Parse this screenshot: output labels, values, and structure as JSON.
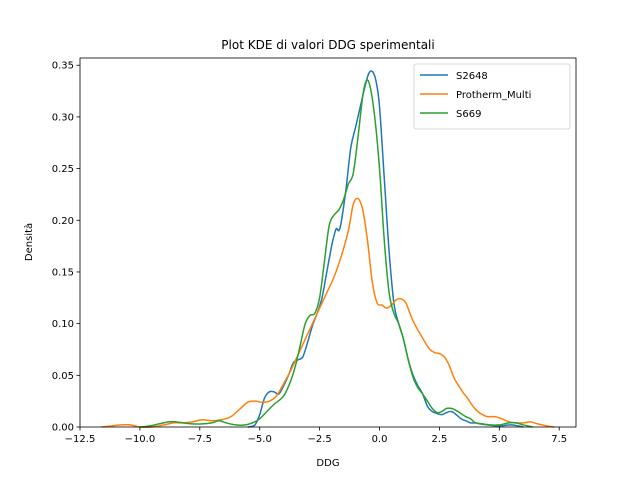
{
  "chart_data": {
    "type": "line",
    "title": "Plot KDE di valori DDG sperimentali",
    "xlabel": "DDG",
    "ylabel": "Densità",
    "xlim": [
      -12.5,
      8.2
    ],
    "ylim": [
      0,
      0.357
    ],
    "xticks": [
      -12.5,
      -10.0,
      -7.5,
      -5.0,
      -2.5,
      0.0,
      2.5,
      5.0,
      7.5
    ],
    "xtick_labels": [
      "−12.5",
      "−10.0",
      "−7.5",
      "−5.0",
      "−2.5",
      "0.0",
      "2.5",
      "5.0",
      "7.5"
    ],
    "yticks": [
      0.0,
      0.05,
      0.1,
      0.15,
      0.2,
      0.25,
      0.3,
      0.35
    ],
    "ytick_labels": [
      "0.00",
      "0.05",
      "0.10",
      "0.15",
      "0.20",
      "0.25",
      "0.30",
      "0.35"
    ],
    "grid": false,
    "legend_position": "top-right",
    "series": [
      {
        "name": "S2648",
        "color": "#1f77b4",
        "points": [
          [
            -5.5,
            0.0
          ],
          [
            -5.2,
            0.002
          ],
          [
            -5.0,
            0.012
          ],
          [
            -4.8,
            0.028
          ],
          [
            -4.6,
            0.034
          ],
          [
            -4.4,
            0.034
          ],
          [
            -4.2,
            0.032
          ],
          [
            -4.0,
            0.04
          ],
          [
            -3.8,
            0.05
          ],
          [
            -3.6,
            0.062
          ],
          [
            -3.4,
            0.065
          ],
          [
            -3.2,
            0.068
          ],
          [
            -3.0,
            0.082
          ],
          [
            -2.8,
            0.098
          ],
          [
            -2.6,
            0.11
          ],
          [
            -2.4,
            0.125
          ],
          [
            -2.2,
            0.15
          ],
          [
            -2.0,
            0.175
          ],
          [
            -1.9,
            0.185
          ],
          [
            -1.8,
            0.192
          ],
          [
            -1.7,
            0.19
          ],
          [
            -1.6,
            0.198
          ],
          [
            -1.4,
            0.23
          ],
          [
            -1.2,
            0.27
          ],
          [
            -1.0,
            0.29
          ],
          [
            -0.8,
            0.31
          ],
          [
            -0.6,
            0.33
          ],
          [
            -0.45,
            0.342
          ],
          [
            -0.3,
            0.344
          ],
          [
            -0.15,
            0.335
          ],
          [
            0.0,
            0.31
          ],
          [
            0.2,
            0.24
          ],
          [
            0.4,
            0.17
          ],
          [
            0.6,
            0.12
          ],
          [
            0.8,
            0.1
          ],
          [
            1.0,
            0.085
          ],
          [
            1.2,
            0.065
          ],
          [
            1.4,
            0.05
          ],
          [
            1.6,
            0.04
          ],
          [
            1.8,
            0.032
          ],
          [
            2.0,
            0.02
          ],
          [
            2.2,
            0.015
          ],
          [
            2.4,
            0.013
          ],
          [
            2.6,
            0.012
          ],
          [
            2.8,
            0.014
          ],
          [
            3.0,
            0.015
          ],
          [
            3.2,
            0.012
          ],
          [
            3.4,
            0.008
          ],
          [
            3.6,
            0.006
          ],
          [
            3.8,
            0.004
          ],
          [
            4.0,
            0.004
          ],
          [
            4.2,
            0.003
          ],
          [
            4.5,
            0.002
          ],
          [
            5.0,
            0.001
          ],
          [
            5.5,
            0.002
          ],
          [
            6.0,
            0.0
          ]
        ]
      },
      {
        "name": "Protherm_Multi",
        "color": "#ff7f0e",
        "points": [
          [
            -11.6,
            0.0
          ],
          [
            -11.2,
            0.001
          ],
          [
            -10.8,
            0.002
          ],
          [
            -10.4,
            0.002
          ],
          [
            -10.0,
            0.0
          ],
          [
            -9.5,
            0.0
          ],
          [
            -9.0,
            0.002
          ],
          [
            -8.6,
            0.004
          ],
          [
            -8.2,
            0.004
          ],
          [
            -7.8,
            0.005
          ],
          [
            -7.4,
            0.007
          ],
          [
            -7.0,
            0.006
          ],
          [
            -6.6,
            0.007
          ],
          [
            -6.2,
            0.01
          ],
          [
            -5.8,
            0.018
          ],
          [
            -5.5,
            0.024
          ],
          [
            -5.2,
            0.025
          ],
          [
            -4.9,
            0.024
          ],
          [
            -4.6,
            0.025
          ],
          [
            -4.3,
            0.03
          ],
          [
            -4.0,
            0.042
          ],
          [
            -3.7,
            0.055
          ],
          [
            -3.4,
            0.07
          ],
          [
            -3.1,
            0.085
          ],
          [
            -2.8,
            0.1
          ],
          [
            -2.5,
            0.115
          ],
          [
            -2.2,
            0.13
          ],
          [
            -1.9,
            0.145
          ],
          [
            -1.6,
            0.165
          ],
          [
            -1.3,
            0.19
          ],
          [
            -1.1,
            0.215
          ],
          [
            -0.9,
            0.221
          ],
          [
            -0.7,
            0.21
          ],
          [
            -0.5,
            0.18
          ],
          [
            -0.3,
            0.14
          ],
          [
            -0.1,
            0.12
          ],
          [
            0.1,
            0.118
          ],
          [
            0.3,
            0.115
          ],
          [
            0.5,
            0.118
          ],
          [
            0.7,
            0.123
          ],
          [
            0.9,
            0.124
          ],
          [
            1.1,
            0.12
          ],
          [
            1.3,
            0.108
          ],
          [
            1.5,
            0.098
          ],
          [
            1.7,
            0.09
          ],
          [
            1.9,
            0.082
          ],
          [
            2.1,
            0.075
          ],
          [
            2.3,
            0.072
          ],
          [
            2.5,
            0.071
          ],
          [
            2.7,
            0.068
          ],
          [
            2.9,
            0.06
          ],
          [
            3.1,
            0.048
          ],
          [
            3.3,
            0.04
          ],
          [
            3.5,
            0.033
          ],
          [
            3.7,
            0.027
          ],
          [
            3.9,
            0.02
          ],
          [
            4.1,
            0.015
          ],
          [
            4.3,
            0.012
          ],
          [
            4.5,
            0.01
          ],
          [
            4.8,
            0.01
          ],
          [
            5.1,
            0.008
          ],
          [
            5.4,
            0.005
          ],
          [
            5.7,
            0.004
          ],
          [
            6.0,
            0.004
          ],
          [
            6.3,
            0.005
          ],
          [
            6.6,
            0.003
          ],
          [
            7.0,
            0.001
          ],
          [
            7.3,
            0.0
          ]
        ]
      },
      {
        "name": "S669",
        "color": "#2ca02c",
        "points": [
          [
            -10.0,
            0.0
          ],
          [
            -9.6,
            0.001
          ],
          [
            -9.2,
            0.003
          ],
          [
            -8.8,
            0.005
          ],
          [
            -8.5,
            0.005
          ],
          [
            -8.2,
            0.004
          ],
          [
            -7.8,
            0.003
          ],
          [
            -7.4,
            0.003
          ],
          [
            -7.0,
            0.004
          ],
          [
            -6.7,
            0.006
          ],
          [
            -6.4,
            0.004
          ],
          [
            -6.0,
            0.002
          ],
          [
            -5.6,
            0.002
          ],
          [
            -5.3,
            0.004
          ],
          [
            -5.0,
            0.008
          ],
          [
            -4.7,
            0.015
          ],
          [
            -4.4,
            0.022
          ],
          [
            -4.0,
            0.03
          ],
          [
            -3.7,
            0.045
          ],
          [
            -3.5,
            0.06
          ],
          [
            -3.3,
            0.08
          ],
          [
            -3.1,
            0.1
          ],
          [
            -2.9,
            0.108
          ],
          [
            -2.7,
            0.11
          ],
          [
            -2.5,
            0.125
          ],
          [
            -2.3,
            0.16
          ],
          [
            -2.1,
            0.195
          ],
          [
            -1.9,
            0.205
          ],
          [
            -1.7,
            0.21
          ],
          [
            -1.5,
            0.22
          ],
          [
            -1.3,
            0.235
          ],
          [
            -1.1,
            0.245
          ],
          [
            -0.9,
            0.28
          ],
          [
            -0.7,
            0.32
          ],
          [
            -0.55,
            0.335
          ],
          [
            -0.4,
            0.33
          ],
          [
            -0.2,
            0.3
          ],
          [
            0.0,
            0.25
          ],
          [
            0.2,
            0.18
          ],
          [
            0.4,
            0.13
          ],
          [
            0.6,
            0.11
          ],
          [
            0.8,
            0.1
          ],
          [
            1.0,
            0.085
          ],
          [
            1.2,
            0.065
          ],
          [
            1.4,
            0.048
          ],
          [
            1.6,
            0.038
          ],
          [
            1.8,
            0.032
          ],
          [
            2.0,
            0.025
          ],
          [
            2.2,
            0.018
          ],
          [
            2.4,
            0.014
          ],
          [
            2.6,
            0.015
          ],
          [
            2.8,
            0.018
          ],
          [
            3.0,
            0.018
          ],
          [
            3.2,
            0.016
          ],
          [
            3.4,
            0.013
          ],
          [
            3.6,
            0.01
          ],
          [
            3.8,
            0.008
          ],
          [
            4.0,
            0.004
          ],
          [
            4.3,
            0.003
          ],
          [
            4.6,
            0.002
          ],
          [
            5.0,
            0.002
          ],
          [
            5.4,
            0.004
          ],
          [
            5.7,
            0.004
          ],
          [
            6.0,
            0.002
          ],
          [
            6.4,
            0.0
          ]
        ]
      }
    ]
  }
}
